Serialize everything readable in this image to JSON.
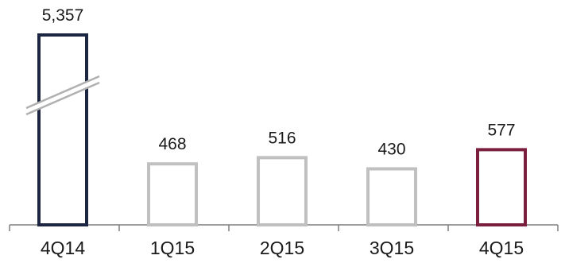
{
  "chart_data": {
    "type": "bar",
    "title": "",
    "xlabel": "",
    "ylabel": "",
    "categories": [
      "4Q14",
      "1Q15",
      "2Q15",
      "3Q15",
      "4Q15"
    ],
    "values": [
      5357,
      468,
      516,
      430,
      577
    ],
    "value_labels": [
      "5,357",
      "468",
      "516",
      "430",
      "577"
    ],
    "axis_break": {
      "on_category": "4Q14",
      "style": "double-slash"
    },
    "grid": false,
    "legend": "none",
    "colors": {
      "4Q14": "#1c2541",
      "1Q15": "#c0c0c0",
      "2Q15": "#c0c0c0",
      "3Q15": "#c0c0c0",
      "4Q15": "#7a1f3d"
    },
    "bar_style": "outline",
    "axis_color": "#7f7f7f"
  }
}
